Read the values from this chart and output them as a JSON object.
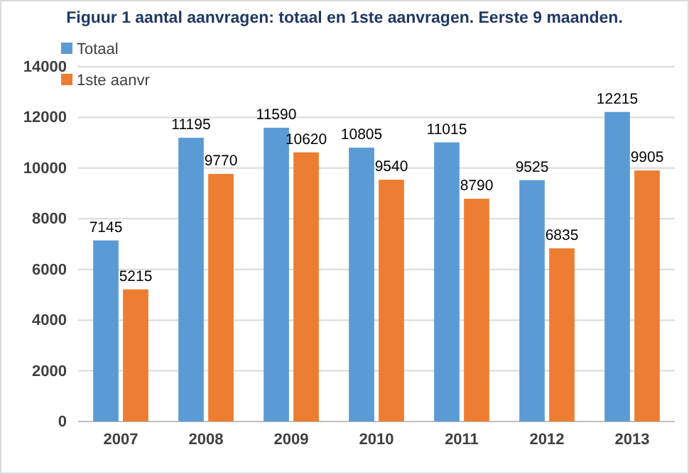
{
  "chart_data": {
    "type": "bar",
    "title": "Figuur 1 aantal aanvragen: totaal en 1ste aanvragen. Eerste 9 maanden.",
    "categories": [
      "2007",
      "2008",
      "2009",
      "2010",
      "2011",
      "2012",
      "2013"
    ],
    "series": [
      {
        "name": "Totaal",
        "color": "#5b9bd5",
        "values": [
          7145,
          11195,
          11590,
          10805,
          11015,
          9525,
          12215
        ]
      },
      {
        "name": "1ste aanvr",
        "color": "#ed7d31",
        "values": [
          5215,
          9770,
          10620,
          9540,
          8790,
          6835,
          9905
        ]
      }
    ],
    "ylim": [
      0,
      14000
    ],
    "yticks": [
      0,
      2000,
      4000,
      6000,
      8000,
      10000,
      12000,
      14000
    ],
    "grid": "y",
    "legend": "top left",
    "data_labels": true
  }
}
